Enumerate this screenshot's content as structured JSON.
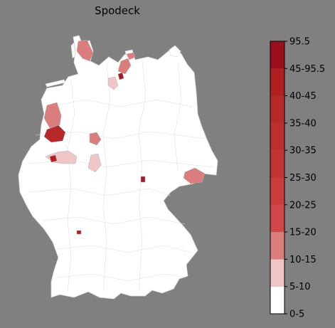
{
  "title": "Spodeck",
  "colors": {
    "background": "#808080",
    "land": "#ffffff",
    "border": "#cfcfcf"
  },
  "legend": {
    "placement": "right",
    "bins": [
      {
        "label": "0-5",
        "color": "#ffffff"
      },
      {
        "label": "5-10",
        "color": "#f0c5c5"
      },
      {
        "label": "10-15",
        "color": "#db7d7d"
      },
      {
        "label": "15-20",
        "color": "#d04848"
      },
      {
        "label": "20-25",
        "color": "#c93d3d"
      },
      {
        "label": "25-30",
        "color": "#c33535"
      },
      {
        "label": "30-35",
        "color": "#bd2f2f"
      },
      {
        "label": "35-40",
        "color": "#b72929"
      },
      {
        "label": "40-45",
        "color": "#b02020"
      },
      {
        "label": "45-95.5",
        "color": "#a51a2a"
      },
      {
        "label": "95.5",
        "color": "#9a0e1e"
      }
    ],
    "top_label": "95.5"
  },
  "regions": [
    {
      "name": "schleswig-north",
      "bin": "10-15"
    },
    {
      "name": "kiel",
      "bin": "10-15"
    },
    {
      "name": "luebeck",
      "bin": "10-15"
    },
    {
      "name": "luebeck-small",
      "bin": "45-95.5"
    },
    {
      "name": "hamburg-south",
      "bin": "5-10"
    },
    {
      "name": "emsland",
      "bin": "10-15"
    },
    {
      "name": "osnabrueck",
      "bin": "35-40"
    },
    {
      "name": "bielefeld",
      "bin": "10-15"
    },
    {
      "name": "ruhr-east",
      "bin": "5-10"
    },
    {
      "name": "duisburg",
      "bin": "40-45"
    },
    {
      "name": "kassel",
      "bin": "5-10"
    },
    {
      "name": "dresden",
      "bin": "10-15"
    },
    {
      "name": "halle",
      "bin": "45-95.5"
    },
    {
      "name": "mannheim",
      "bin": "40-45"
    }
  ]
}
